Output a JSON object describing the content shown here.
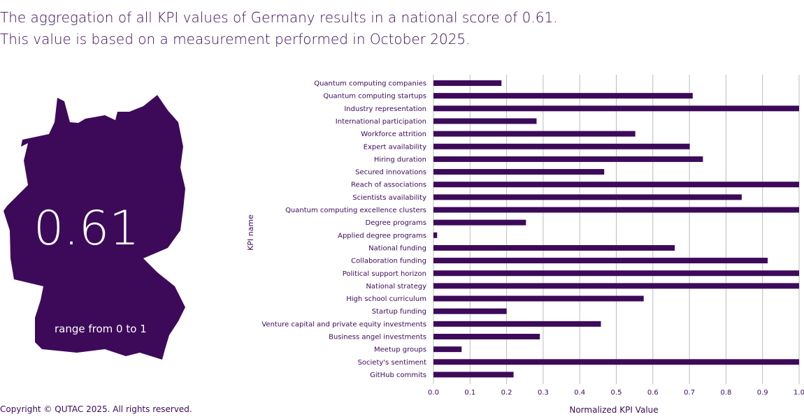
{
  "headline": {
    "line1": "The aggregation of all KPI values of Germany results in a national score of 0.61.",
    "line2": "This value is based on a measurement performed in October 2025."
  },
  "map": {
    "score": "0.61",
    "range_label": "range from 0 to 1",
    "fill": "#3d0a5a"
  },
  "footer": {
    "copyright": "Copyright © QUTAC 2025. All rights reserved."
  },
  "chart_data": {
    "type": "bar",
    "orientation": "horizontal",
    "xlabel": "Normalized KPI Value",
    "ylabel": "KPI name",
    "xlim": [
      0,
      1.0
    ],
    "xticks": [
      "0.0",
      "0.1",
      "0.2",
      "0.3",
      "0.4",
      "0.5",
      "0.6",
      "0.7",
      "0.8",
      "0.9",
      "1.0"
    ],
    "grid": "vertical",
    "color": "#3d0a5a",
    "categories": [
      "Quantum computing companies",
      "Quantum computing startups",
      "Industry representation",
      "International participation",
      "Workforce attrition",
      "Expert availability",
      "Hiring duration",
      "Secured innovations",
      "Reach of associations",
      "Scientists availability",
      "Quantum computing excellence clusters",
      "Degree programs",
      "Applied degree programs",
      "National funding",
      "Collaboration funding",
      "Political support horizon",
      "National strategy",
      "High school curriculum",
      "Startup funding",
      "Venture capital and private equity investments",
      "Business angel investments",
      "Meetup groups",
      "Society's sentiment",
      "GitHub commits"
    ],
    "values": [
      0.186,
      0.709,
      1.0,
      0.282,
      0.552,
      0.701,
      0.737,
      0.467,
      1.0,
      0.843,
      1.0,
      0.253,
      0.01,
      0.66,
      0.914,
      1.0,
      1.0,
      0.575,
      0.2,
      0.458,
      0.291,
      0.077,
      1.0,
      0.219
    ]
  }
}
